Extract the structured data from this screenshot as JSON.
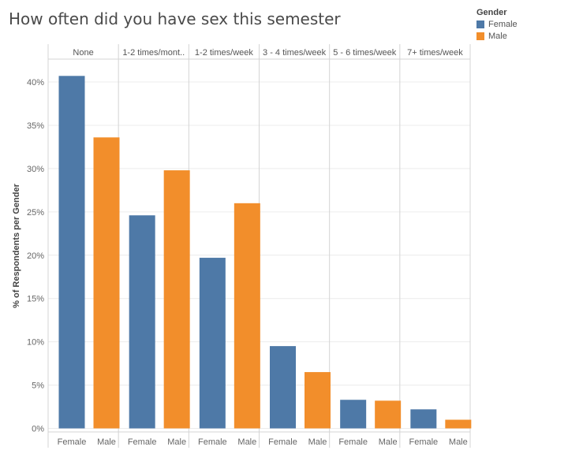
{
  "title": "How often did you have sex this semester",
  "legend": {
    "title": "Gender",
    "items": [
      {
        "label": "Female",
        "color": "#4e79a7"
      },
      {
        "label": "Male",
        "color": "#f28e2b"
      }
    ]
  },
  "chart_data": {
    "type": "bar",
    "title": "How often did you have sex this semester",
    "ylabel": "% of Respondents per Gender",
    "xlabel": "",
    "ylim": [
      0,
      40
    ],
    "yticks": [
      "0%",
      "5%",
      "10%",
      "15%",
      "20%",
      "25%",
      "30%",
      "35%",
      "40%"
    ],
    "categories": [
      "None",
      "1-2 times/mont..",
      "1-2 times/week",
      "3 - 4 times/week",
      "5 - 6 times/week",
      "7+ times/week"
    ],
    "sub_labels": [
      "Female",
      "Male"
    ],
    "series": [
      {
        "name": "Female",
        "color": "#4e79a7",
        "values": [
          40.7,
          24.6,
          19.7,
          9.5,
          3.3,
          2.2
        ]
      },
      {
        "name": "Male",
        "color": "#f28e2b",
        "values": [
          33.6,
          29.8,
          26.0,
          6.5,
          3.2,
          1.0
        ]
      }
    ],
    "grid": true,
    "legend_position": "top-right"
  }
}
